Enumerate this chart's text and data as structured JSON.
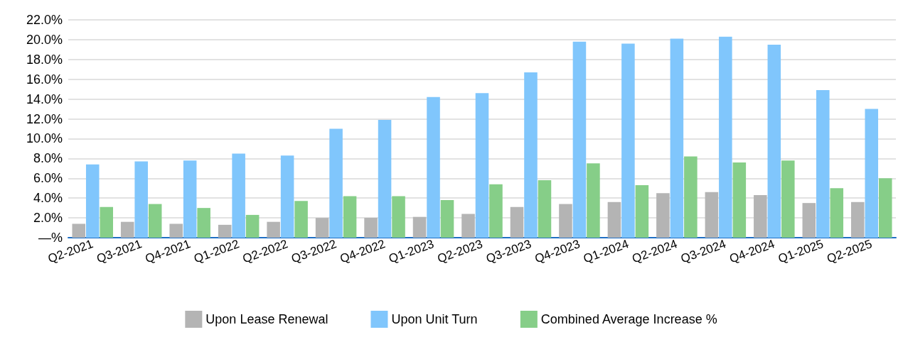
{
  "chart_data": {
    "type": "bar",
    "categories": [
      "Q2-2021",
      "Q3-2021",
      "Q4-2021",
      "Q1-2022",
      "Q2-2022",
      "Q3-2022",
      "Q4-2022",
      "Q1-2023",
      "Q2-2023",
      "Q3-2023",
      "Q4-2023",
      "Q1-2024",
      "Q2-2024",
      "Q3-2024",
      "Q4-2024",
      "Q1-2025",
      "Q2-2025"
    ],
    "series": [
      {
        "name": "Upon Lease Renewal",
        "color": "#b4b4b4",
        "values": [
          1.4,
          1.6,
          1.4,
          1.3,
          1.6,
          2.0,
          2.0,
          2.1,
          2.4,
          3.1,
          3.4,
          3.6,
          4.5,
          4.6,
          4.3,
          3.5,
          3.6
        ]
      },
      {
        "name": "Upon Unit Turn",
        "color": "#80c6fc",
        "values": [
          7.4,
          7.7,
          7.8,
          8.5,
          8.3,
          11.0,
          11.9,
          14.2,
          14.6,
          16.7,
          19.8,
          19.6,
          20.1,
          20.3,
          19.5,
          14.9,
          13.0
        ]
      },
      {
        "name": "Combined Average Increase %",
        "color": "#86ce88",
        "values": [
          3.1,
          3.4,
          3.0,
          2.3,
          3.7,
          4.2,
          4.2,
          3.8,
          5.4,
          5.8,
          7.5,
          5.3,
          8.2,
          7.6,
          7.8,
          5.0,
          6.0
        ]
      }
    ],
    "ylim": [
      0,
      22
    ],
    "yticks": [
      {
        "value": 0,
        "label": "—%"
      },
      {
        "value": 2,
        "label": "2.0%"
      },
      {
        "value": 4,
        "label": "4.0%"
      },
      {
        "value": 6,
        "label": "6.0%"
      },
      {
        "value": 8,
        "label": "8.0%"
      },
      {
        "value": 10,
        "label": "10.0%"
      },
      {
        "value": 12,
        "label": "12.0%"
      },
      {
        "value": 14,
        "label": "14.0%"
      },
      {
        "value": 16,
        "label": "16.0%"
      },
      {
        "value": 18,
        "label": "18.0%"
      },
      {
        "value": 20,
        "label": "20.0%"
      },
      {
        "value": 22,
        "label": "22.0%"
      }
    ],
    "grid": "y",
    "legend": "bottom"
  }
}
